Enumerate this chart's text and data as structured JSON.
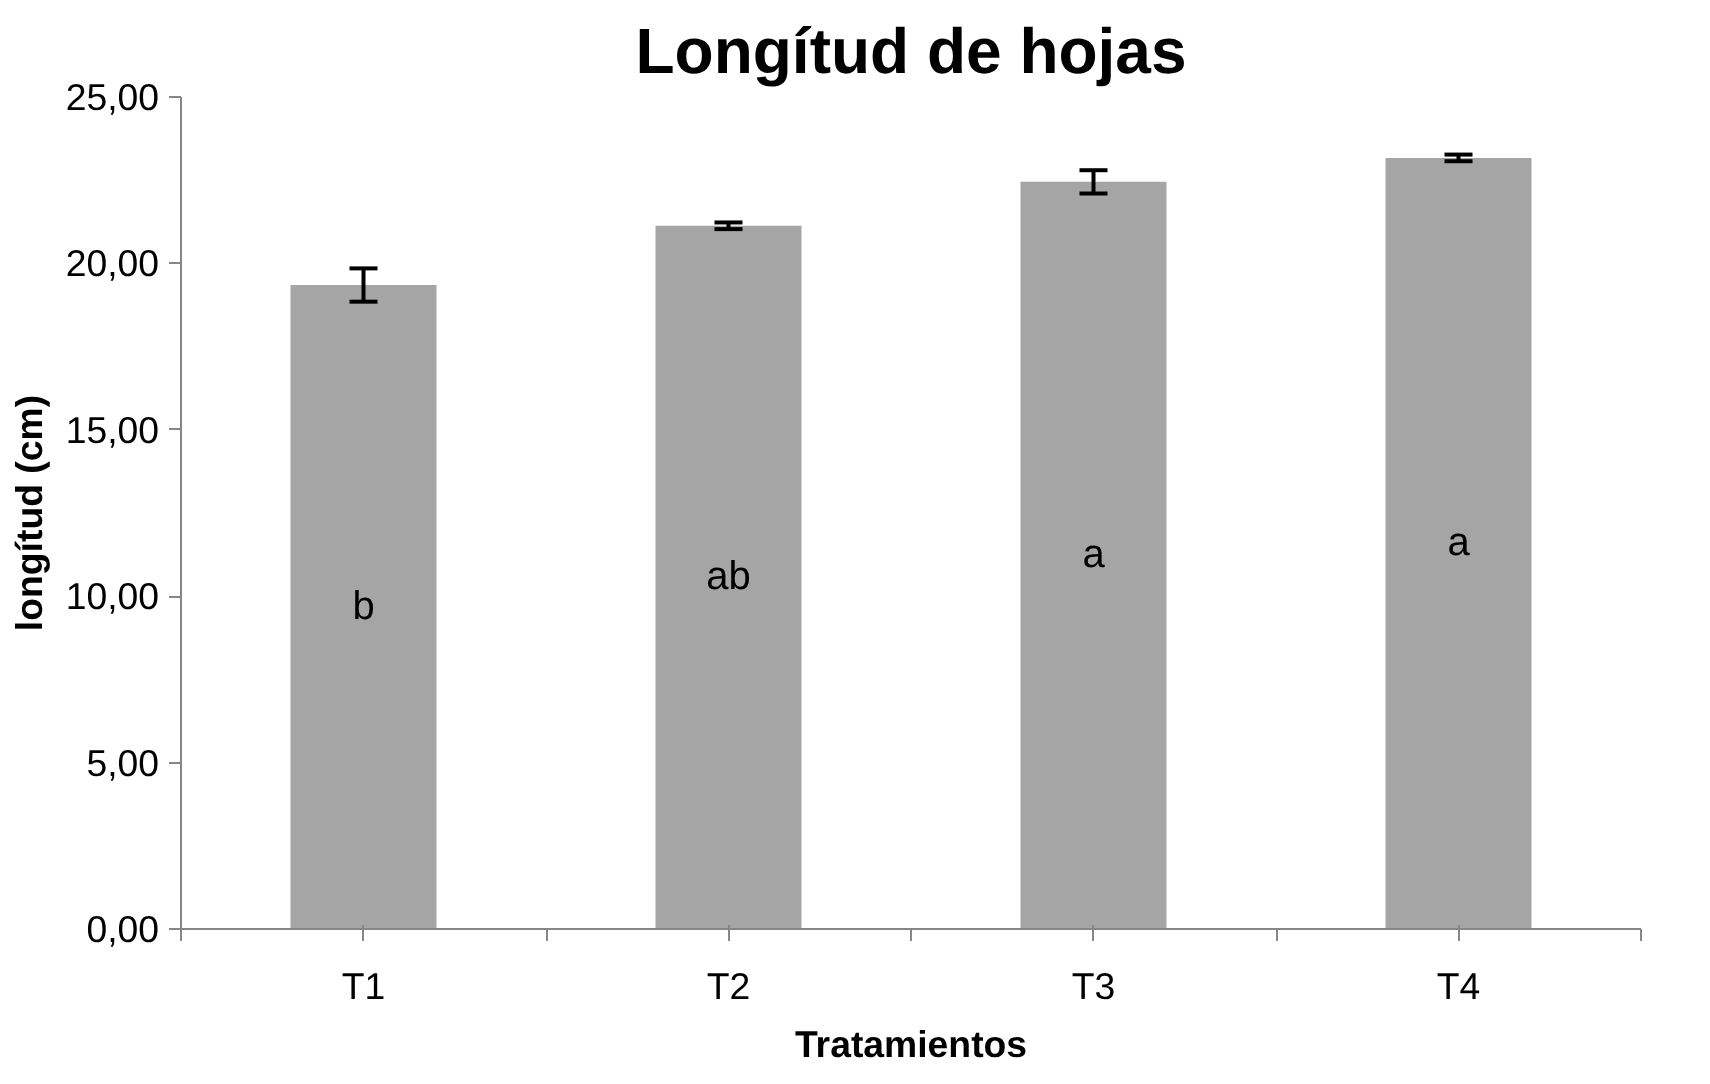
{
  "chart_data": {
    "type": "bar",
    "title": "Longítud de hojas",
    "xlabel": "Tratamientos",
    "ylabel": "longítud (cm)",
    "categories": [
      "T1",
      "T2",
      "T3",
      "T4"
    ],
    "values": [
      19.35,
      21.13,
      22.45,
      23.17
    ],
    "errors": [
      0.5,
      0.1,
      0.35,
      0.1
    ],
    "color": "#a5a5a5",
    "ylim": [
      0,
      25
    ],
    "yticks": [
      {
        "value": 0,
        "label": "0,00"
      },
      {
        "value": 5,
        "label": "5,00"
      },
      {
        "value": 10,
        "label": "10,00"
      },
      {
        "value": 15,
        "label": "15,00"
      },
      {
        "value": 20,
        "label": "20,00"
      },
      {
        "value": 25,
        "label": "25,00"
      }
    ],
    "annotations": [
      "b",
      "ab",
      "a",
      "a"
    ]
  }
}
